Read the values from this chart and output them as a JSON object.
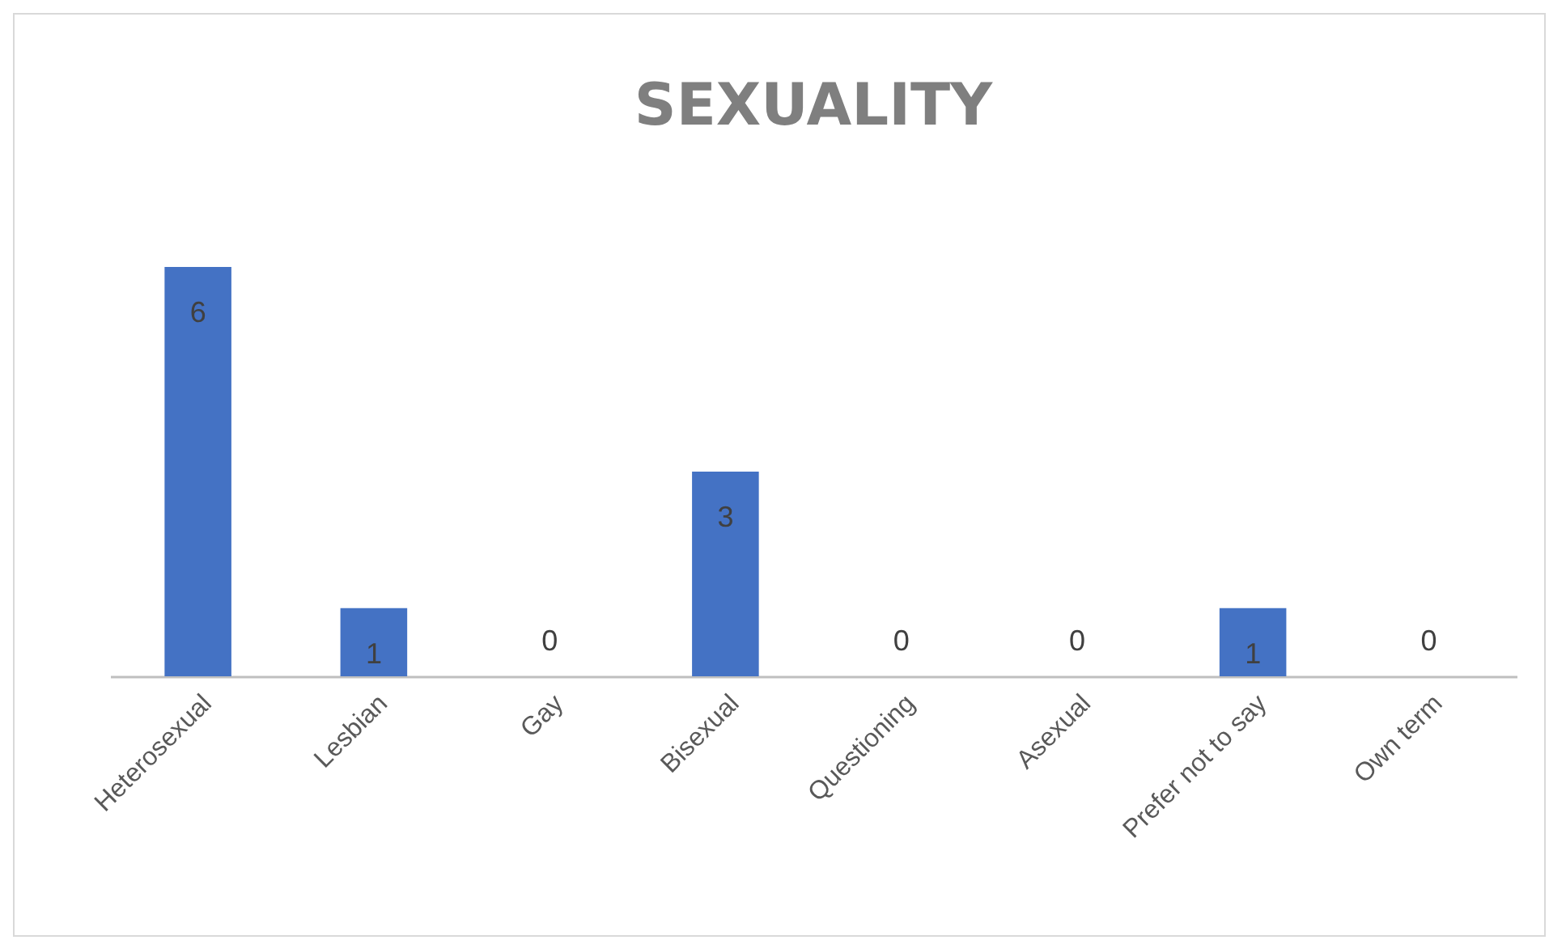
{
  "chart_data": {
    "type": "bar",
    "title": "SEXUALITY",
    "categories": [
      "Heterosexual",
      "Lesbian",
      "Gay",
      "Bisexual",
      "Questioning",
      "Asexual",
      "Prefer not to say",
      "Own term"
    ],
    "values": [
      6,
      1,
      0,
      3,
      0,
      0,
      1,
      0
    ],
    "color": "#4472c4",
    "data_labels": true,
    "grid": false
  }
}
